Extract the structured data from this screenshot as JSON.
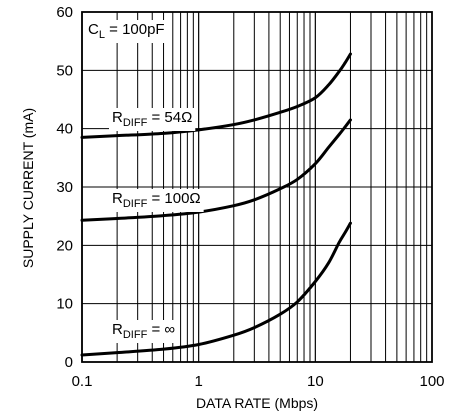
{
  "chart_data": {
    "type": "line",
    "xlabel": "DATA RATE (Mbps)",
    "ylabel": "SUPPLY CURRENT (mA)",
    "x_scale": "log",
    "xlim": [
      0.1,
      100
    ],
    "ylim": [
      0,
      60
    ],
    "x_ticks": [
      0.1,
      1,
      10,
      100
    ],
    "x_tick_labels": [
      "0.1",
      "1",
      "10",
      "100"
    ],
    "y_ticks": [
      0,
      10,
      20,
      30,
      40,
      50,
      60
    ],
    "y_tick_labels": [
      "0",
      "10",
      "20",
      "30",
      "40",
      "50",
      "60"
    ],
    "grid": true,
    "annotation": {
      "main": "C",
      "sub": "L",
      "rest": " = 100pF"
    },
    "series": [
      {
        "name": "R_DIFF = 54Ω",
        "label": {
          "main": "R",
          "sub": "DIFF",
          "rest": " = 54Ω"
        },
        "x": [
          0.1,
          0.2,
          0.5,
          1,
          2,
          3,
          5,
          7,
          10,
          13,
          16,
          18,
          20
        ],
        "y": [
          38.5,
          38.8,
          39.2,
          39.8,
          40.7,
          41.5,
          42.8,
          43.8,
          45.3,
          47.5,
          49.8,
          51.3,
          52.8
        ]
      },
      {
        "name": "R_DIFF = 100Ω",
        "label": {
          "main": "R",
          "sub": "DIFF",
          "rest": " = 100Ω"
        },
        "x": [
          0.1,
          0.2,
          0.5,
          1,
          2,
          3,
          5,
          7,
          10,
          13,
          16,
          18,
          20
        ],
        "y": [
          24.3,
          24.6,
          25.1,
          25.7,
          26.8,
          27.8,
          29.7,
          31.3,
          34.0,
          36.8,
          39.0,
          40.3,
          41.5
        ]
      },
      {
        "name": "R_DIFF = ∞",
        "label": {
          "main": "R",
          "sub": "DIFF",
          "rest": " = ∞"
        },
        "x": [
          0.1,
          0.2,
          0.5,
          1,
          2,
          3,
          5,
          7,
          10,
          13,
          16,
          18,
          20
        ],
        "y": [
          1.2,
          1.6,
          2.2,
          3.0,
          4.6,
          5.9,
          8.2,
          10.3,
          13.8,
          17.0,
          20.5,
          22.2,
          23.8
        ]
      }
    ]
  }
}
